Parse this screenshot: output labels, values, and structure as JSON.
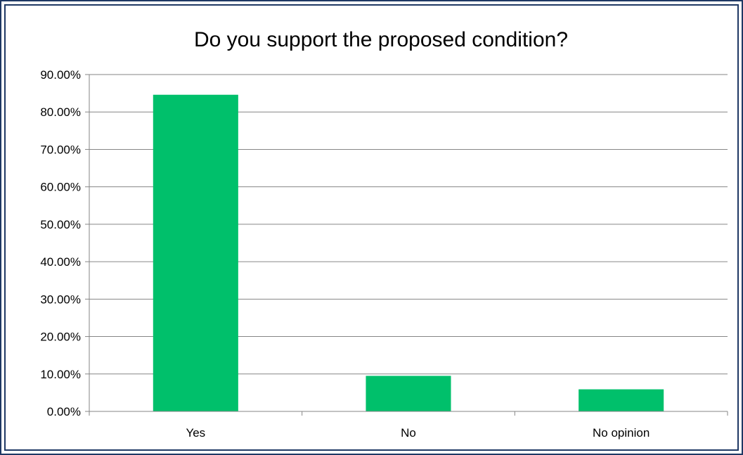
{
  "chart_data": {
    "type": "bar",
    "title": "Do you support the proposed condition?",
    "categories": [
      "Yes",
      "No",
      "No opinion"
    ],
    "values": [
      84.6,
      9.5,
      5.9
    ],
    "ylim": [
      0,
      90
    ],
    "yticks": [
      "0.00%",
      "10.00%",
      "20.00%",
      "30.00%",
      "40.00%",
      "50.00%",
      "60.00%",
      "70.00%",
      "80.00%",
      "90.00%"
    ],
    "grid": true,
    "colors": {
      "bar": "#00c06b",
      "grid": "#868686",
      "axis": "#868686",
      "text": "#000000",
      "border": "#1f3864"
    }
  }
}
